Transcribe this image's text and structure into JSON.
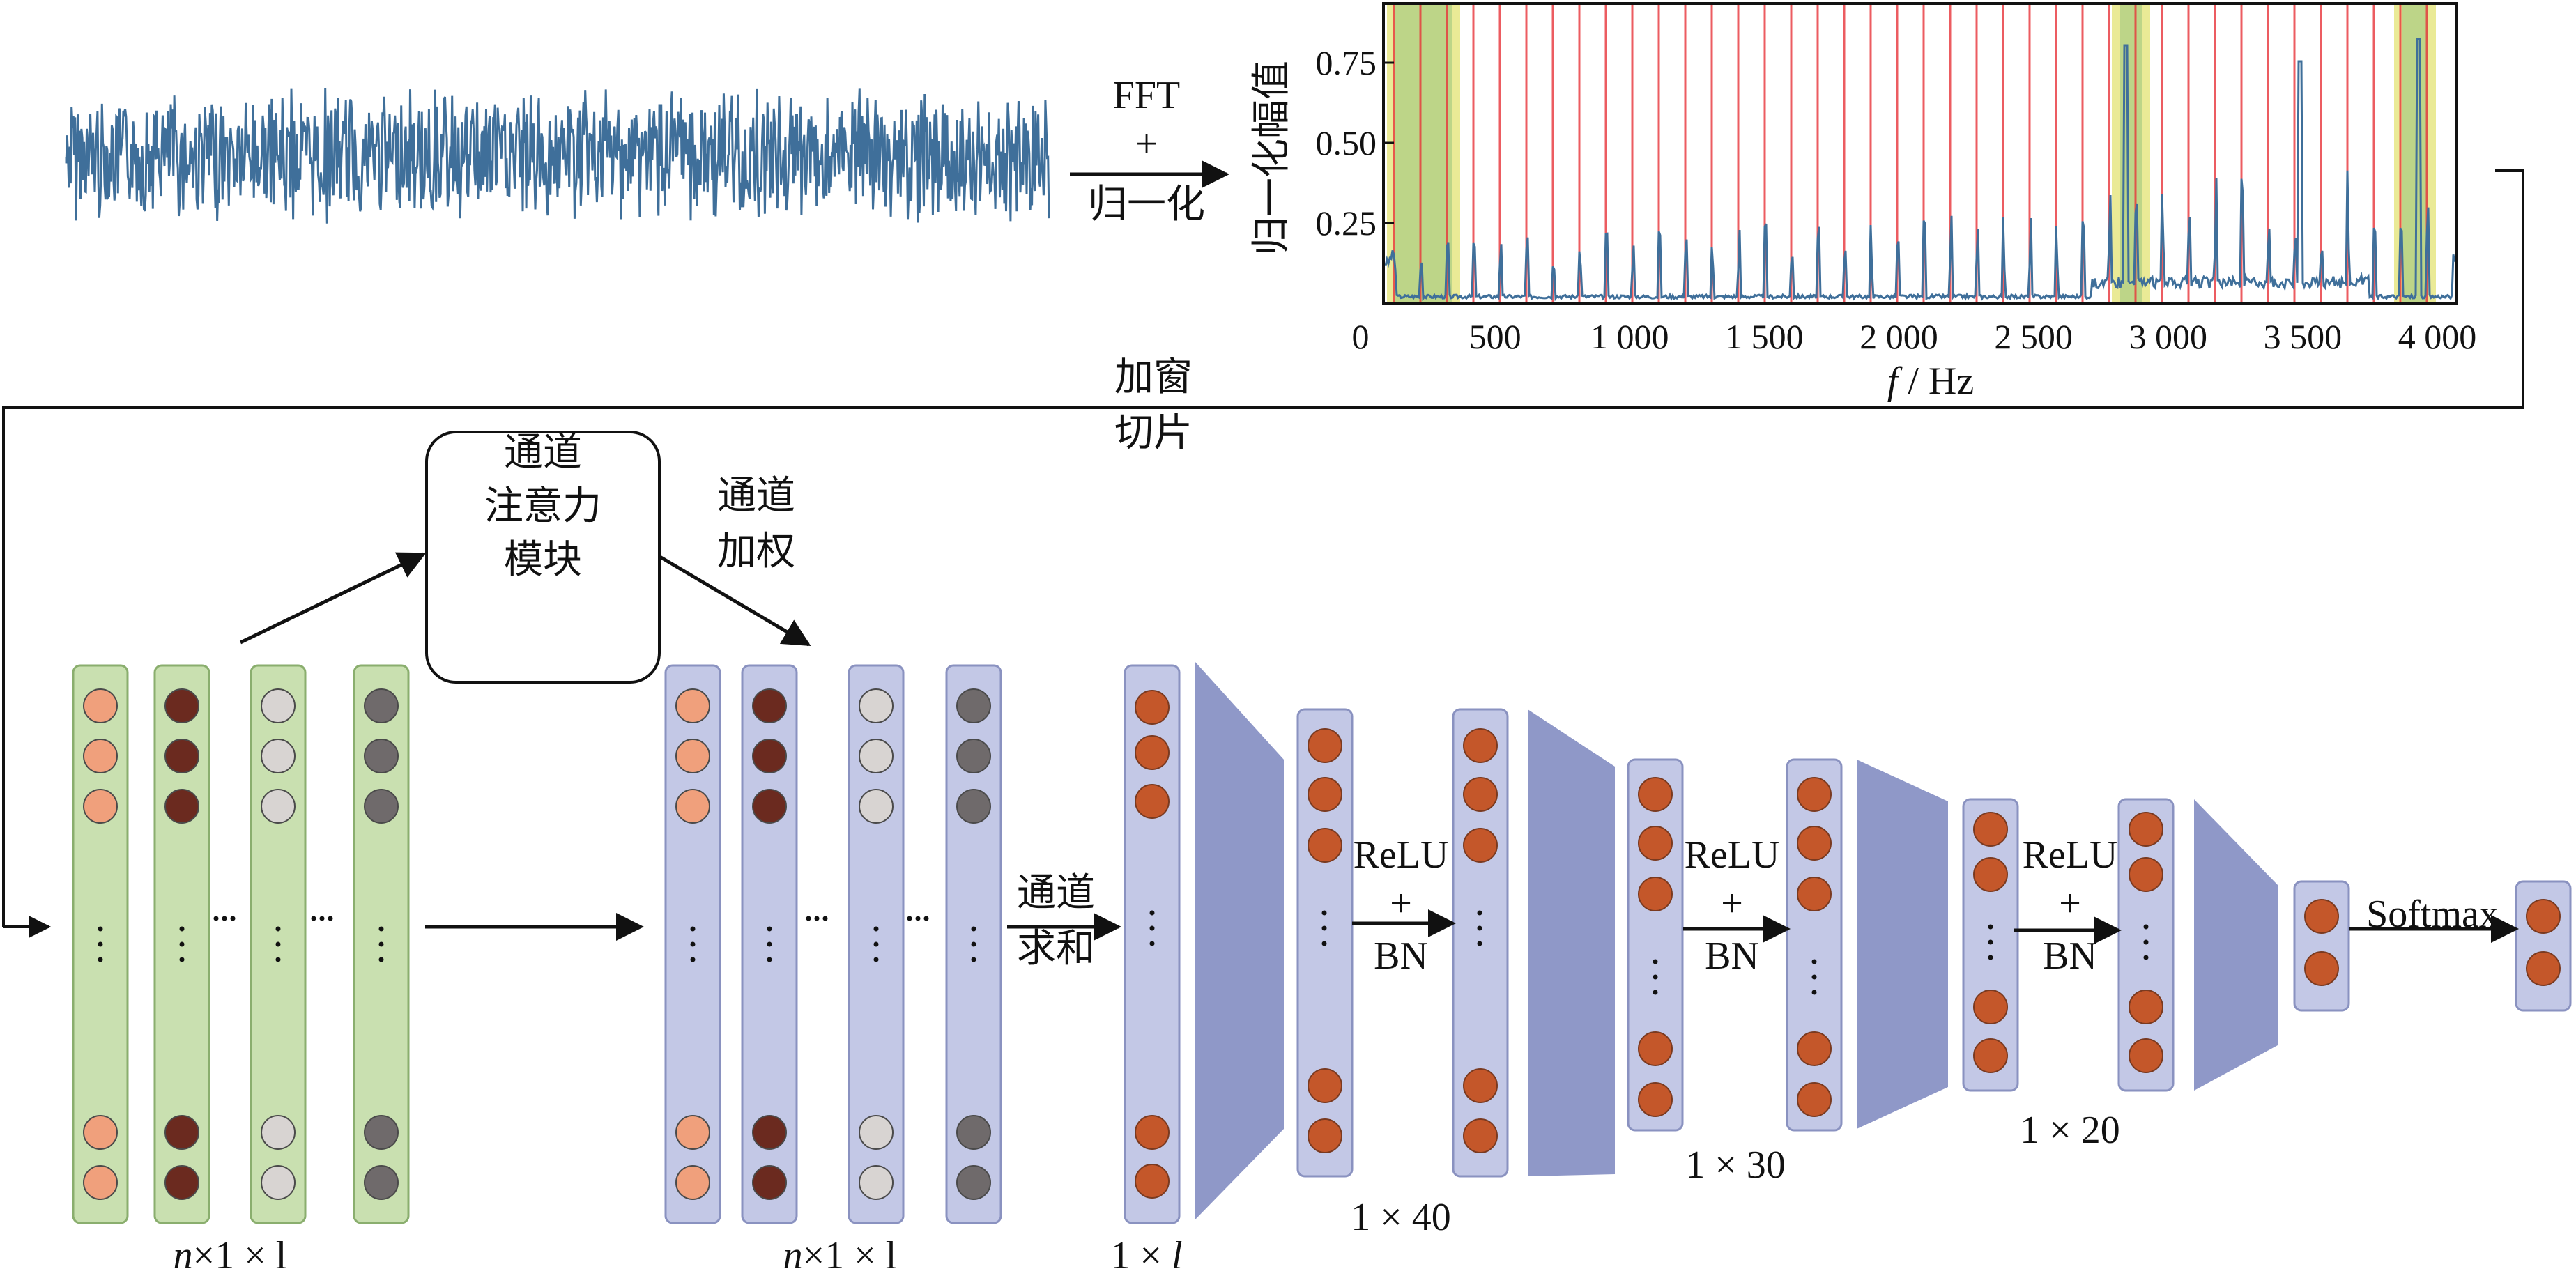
{
  "top": {
    "fft_label": "FFT",
    "plus": "+",
    "normalize_label": "归一化",
    "window_line1": "加窗",
    "window_line2": "切片"
  },
  "spectrum": {
    "ylabel": "归一化幅值",
    "xlabel_var": "f",
    "xlabel_unit": "/ Hz",
    "yticks": [
      "0.25",
      "0.50",
      "0.75"
    ],
    "xticks": [
      "0",
      "500",
      "1 000",
      "1 500",
      "2 000",
      "2 500",
      "3 000",
      "3 500",
      "4 000"
    ],
    "colors": {
      "line": "#3f6f9a",
      "red": "#e8343a",
      "yellow": "#d8d840",
      "green": "#8fc07a"
    }
  },
  "attention": {
    "box_lines": [
      "通道",
      "注意力",
      "模块"
    ],
    "weight_line1": "通道",
    "weight_line2": "加权"
  },
  "network": {
    "sum_line1": "通道",
    "sum_line2": "求和",
    "act1_a": "ReLU",
    "act1_b": "+",
    "act1_c": "BN",
    "act2_a": "ReLU",
    "act2_b": "+",
    "act2_c": "BN",
    "act3_a": "ReLU",
    "act3_b": "+",
    "act3_c": "BN",
    "softmax": "Softmax",
    "dim_input_a": "n",
    "dim_input_b": "×1 × l",
    "dim_weighted_a": "n",
    "dim_weighted_b": "×1 × l",
    "dim_sum_a": "1 × ",
    "dim_sum_b": "l",
    "dim_40": "1 × 40",
    "dim_30": "1 × 30",
    "dim_20": "1 × 20",
    "colors": {
      "green_col": "#c9e0b0",
      "blue_col": "#c3c8e6",
      "trap": "#8f98c8",
      "orange": "#c4572a",
      "salmon": "#f0a07c",
      "dark": "#6b2a1f",
      "light": "#d8d4d2",
      "grey": "#6f6a6b"
    }
  }
}
